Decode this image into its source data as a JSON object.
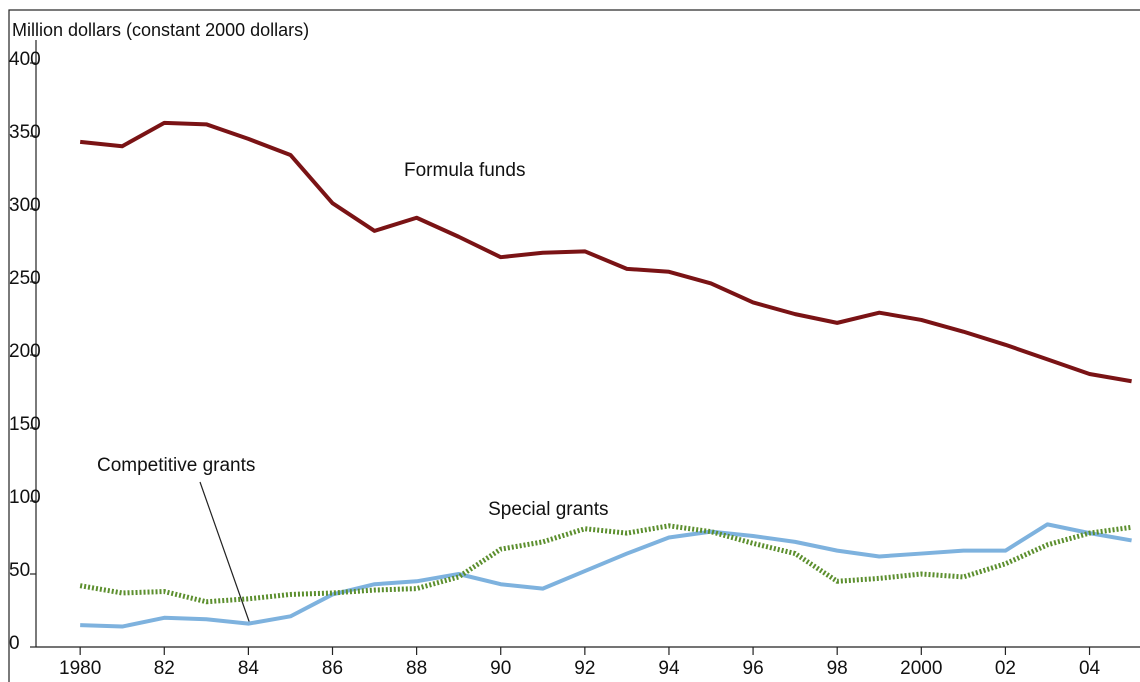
{
  "chart_data": {
    "type": "line",
    "y_label": "Million dollars (constant 2000 dollars)",
    "x": [
      1980,
      1981,
      1982,
      1983,
      1984,
      1985,
      1986,
      1987,
      1988,
      1989,
      1990,
      1991,
      1992,
      1993,
      1994,
      1995,
      1996,
      1997,
      1998,
      1999,
      2000,
      2001,
      2002,
      2003,
      2004,
      2005
    ],
    "series": [
      {
        "name": "Formula funds",
        "color": "#7a1315",
        "style": "solid",
        "values": [
          346,
          343,
          359,
          358,
          348,
          337,
          304,
          285,
          294,
          281,
          267,
          270,
          271,
          259,
          257,
          249,
          236,
          228,
          222,
          229,
          224,
          216,
          207,
          197,
          187,
          182
        ]
      },
      {
        "name": "Competitive grants",
        "color": "#7eb2de",
        "style": "solid",
        "values": [
          15,
          14,
          20,
          19,
          16,
          21,
          36,
          43,
          45,
          50,
          43,
          40,
          52,
          64,
          75,
          79,
          76,
          72,
          66,
          62,
          64,
          66,
          66,
          84,
          78,
          73
        ]
      },
      {
        "name": "Special grants",
        "color": "#5c8f2e",
        "style": "dotted",
        "values": [
          42,
          37,
          38,
          31,
          33,
          36,
          37,
          39,
          40,
          48,
          67,
          72,
          81,
          78,
          83,
          79,
          71,
          64,
          45,
          47,
          50,
          48,
          57,
          70,
          78,
          82
        ]
      }
    ],
    "xlim": [
      1978.95,
      2005.2
    ],
    "xticks": [
      {
        "value": 1980,
        "label": "1980"
      },
      {
        "value": 1982,
        "label": "82"
      },
      {
        "value": 1984,
        "label": "84"
      },
      {
        "value": 1986,
        "label": "86"
      },
      {
        "value": 1988,
        "label": "88"
      },
      {
        "value": 1990,
        "label": "90"
      },
      {
        "value": 1992,
        "label": "92"
      },
      {
        "value": 1994,
        "label": "94"
      },
      {
        "value": 1996,
        "label": "96"
      },
      {
        "value": 1998,
        "label": "98"
      },
      {
        "value": 2000,
        "label": "2000"
      },
      {
        "value": 2002,
        "label": "02"
      },
      {
        "value": 2004,
        "label": "04"
      }
    ],
    "ylim": [
      0,
      400
    ],
    "yticks": [
      0,
      50,
      100,
      150,
      200,
      250,
      300,
      350,
      400
    ],
    "annotations": [
      {
        "text": "Formula funds",
        "x": 1987.7,
        "y": 326
      },
      {
        "text": "Special grants",
        "x": 1989.7,
        "y": 94
      },
      {
        "text": "Competitive grants",
        "x": 1980.4,
        "y": 124
      }
    ]
  }
}
